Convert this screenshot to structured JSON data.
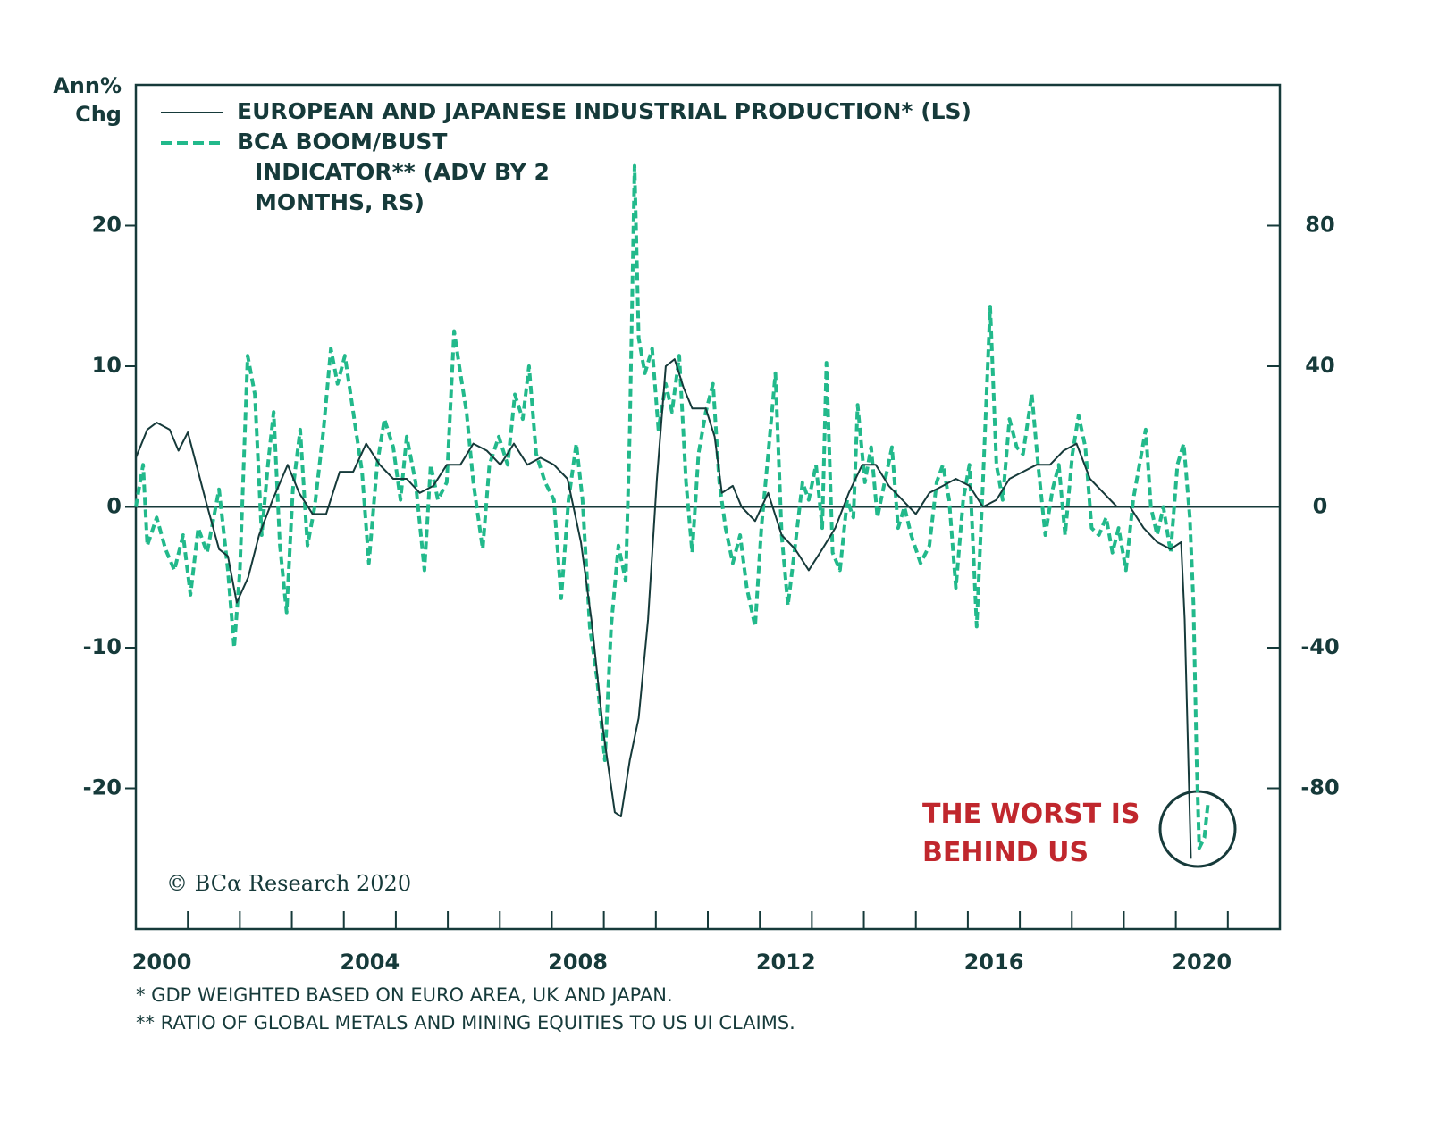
{
  "chart_data": {
    "type": "line",
    "y_axis_label": "Ann% Chg",
    "xlim": [
      2000,
      2022
    ],
    "xticks": [
      2000,
      2004,
      2008,
      2012,
      2016,
      2020
    ],
    "xtick_marks": [
      2001,
      2002,
      2003,
      2004,
      2005,
      2006,
      2007,
      2008,
      2009,
      2010,
      2011,
      2012,
      2013,
      2014,
      2015,
      2016,
      2017,
      2018,
      2019,
      2020,
      2021
    ],
    "ylim": [
      -30,
      30
    ],
    "yticks": [
      -20,
      -10,
      0,
      10,
      20
    ],
    "y2lim": [
      -120,
      120
    ],
    "y2ticks": [
      -80,
      -40,
      0,
      40,
      80
    ],
    "series": [
      {
        "name": "EUROPEAN AND JAPANESE INDUSTRIAL PRODUCTION* (LS)",
        "color": "#163a3a",
        "style": "solid",
        "x": [
          2000,
          2000.22,
          2000.4,
          2000.65,
          2000.82,
          2001,
          2001.34,
          2001.6,
          2001.77,
          2001.94,
          2002.16,
          2002.37,
          2002.63,
          2002.92,
          2003.14,
          2003.4,
          2003.66,
          2003.92,
          2004.18,
          2004.43,
          2004.69,
          2004.95,
          2005.21,
          2005.46,
          2005.72,
          2005.98,
          2006.24,
          2006.49,
          2006.75,
          2007.01,
          2007.27,
          2007.53,
          2007.78,
          2008.04,
          2008.3,
          2008.56,
          2008.76,
          2008.99,
          2009.21,
          2009.33,
          2009.5,
          2009.67,
          2009.85,
          2010.02,
          2010.19,
          2010.36,
          2010.53,
          2010.7,
          2010.96,
          2011.13,
          2011.27,
          2011.48,
          2011.65,
          2011.91,
          2012.16,
          2012.42,
          2012.68,
          2012.94,
          2013.2,
          2013.45,
          2013.71,
          2013.97,
          2014.23,
          2014.48,
          2014.74,
          2015,
          2015.26,
          2015.52,
          2015.77,
          2016.03,
          2016.29,
          2016.55,
          2016.8,
          2017.06,
          2017.32,
          2017.58,
          2017.84,
          2018.09,
          2018.35,
          2018.61,
          2018.87,
          2019.12,
          2019.38,
          2019.64,
          2019.9,
          2020.1,
          2020.17,
          2020.29
        ],
        "values": [
          3.5,
          5.5,
          6,
          5.5,
          4,
          5.3,
          0.5,
          -3,
          -3.5,
          -6.8,
          -5,
          -2,
          0.5,
          3,
          1,
          -0.5,
          -0.5,
          2.5,
          2.5,
          4.5,
          3,
          2,
          2,
          1,
          1.5,
          3,
          3,
          4.5,
          4,
          3,
          4.5,
          3,
          3.5,
          3,
          2,
          -2.5,
          -8,
          -16,
          -21.7,
          -22,
          -18,
          -15,
          -8,
          2,
          10,
          10.5,
          8.5,
          7,
          7,
          5,
          1,
          1.5,
          0,
          -1,
          1,
          -2,
          -3,
          -4.5,
          -3,
          -1.5,
          1,
          3,
          3,
          1.5,
          0.5,
          -0.5,
          1,
          1.5,
          2,
          1.5,
          0,
          0.5,
          2,
          2.5,
          3,
          3,
          4,
          4.5,
          2,
          1,
          0,
          0,
          -1.5,
          -2.5,
          -3,
          -2.5,
          -8,
          -25
        ]
      },
      {
        "name": "BCA BOOM/BUST INDICATOR** (ADV BY 2 MONTHS, RS)",
        "color": "#22b98b",
        "style": "dashed",
        "axis": "y2",
        "x": [
          2000,
          2000.14,
          2000.22,
          2000.4,
          2000.57,
          2000.74,
          2000.91,
          2001.05,
          2001.2,
          2001.37,
          2001.6,
          2001.77,
          2001.89,
          2002,
          2002.15,
          2002.29,
          2002.42,
          2002.54,
          2002.65,
          2002.77,
          2002.9,
          2003.02,
          2003.16,
          2003.3,
          2003.44,
          2003.61,
          2003.75,
          2003.88,
          2004.02,
          2004.18,
          2004.35,
          2004.48,
          2004.64,
          2004.78,
          2004.95,
          2005.09,
          2005.21,
          2005.38,
          2005.55,
          2005.67,
          2005.81,
          2005.98,
          2006.12,
          2006.24,
          2006.36,
          2006.49,
          2006.67,
          2006.8,
          2006.98,
          2007.15,
          2007.29,
          2007.44,
          2007.56,
          2007.7,
          2007.87,
          2008.04,
          2008.18,
          2008.32,
          2008.47,
          2008.59,
          2008.73,
          2008.87,
          2009.02,
          2009.14,
          2009.28,
          2009.42,
          2009.5,
          2009.59,
          2009.67,
          2009.79,
          2009.93,
          2010.05,
          2010.19,
          2010.31,
          2010.45,
          2010.58,
          2010.7,
          2010.82,
          2010.96,
          2011.1,
          2011.22,
          2011.34,
          2011.48,
          2011.62,
          2011.75,
          2011.91,
          2012.03,
          2012.16,
          2012.3,
          2012.42,
          2012.54,
          2012.68,
          2012.82,
          2012.94,
          2013.08,
          2013.2,
          2013.28,
          2013.4,
          2013.54,
          2013.68,
          2013.8,
          2013.88,
          2014.02,
          2014.14,
          2014.26,
          2014.4,
          2014.54,
          2014.66,
          2014.78,
          2014.91,
          2015.09,
          2015.26,
          2015.4,
          2015.52,
          2015.64,
          2015.77,
          2015.91,
          2016.03,
          2016.17,
          2016.29,
          2016.43,
          2016.55,
          2016.67,
          2016.8,
          2016.94,
          2017.06,
          2017.23,
          2017.35,
          2017.49,
          2017.63,
          2017.75,
          2017.87,
          2018.01,
          2018.13,
          2018.26,
          2018.38,
          2018.52,
          2018.66,
          2018.78,
          2018.9,
          2019.04,
          2019.18,
          2019.3,
          2019.42,
          2019.52,
          2019.64,
          2019.76,
          2019.9,
          2020.03,
          2020.15,
          2020.27,
          2020.34,
          2020.4,
          2020.45,
          2020.55,
          2020.62
        ],
        "values": [
          0,
          12,
          -11,
          -3,
          -12,
          -18,
          -8,
          -25,
          -6,
          -13,
          5,
          -18,
          -40,
          -18,
          43,
          32,
          -8,
          12,
          27,
          -11,
          -30,
          5,
          22,
          -11,
          0,
          22,
          45,
          35,
          43,
          27,
          10,
          -16,
          12,
          25,
          17,
          2,
          20,
          7,
          -18,
          12,
          2,
          7,
          50,
          38,
          27,
          7,
          -12,
          12,
          20,
          12,
          32,
          25,
          40,
          15,
          7,
          2,
          -26,
          2,
          18,
          2,
          -34,
          -49,
          -72,
          -34,
          -11,
          -21,
          22,
          97,
          48,
          38,
          45,
          22,
          35,
          27,
          43,
          7,
          -13,
          15,
          27,
          35,
          7,
          -6,
          -16,
          -8,
          -23,
          -34,
          -6,
          15,
          38,
          -8,
          -28,
          -11,
          7,
          2,
          12,
          -6,
          41,
          -13,
          -18,
          2,
          -3,
          29,
          7,
          17,
          -3,
          7,
          17,
          -6,
          0,
          -8,
          -16,
          -11,
          7,
          12,
          2,
          -23,
          2,
          12,
          -34,
          7,
          57,
          12,
          2,
          25,
          17,
          15,
          32,
          12,
          -8,
          5,
          12,
          -8,
          15,
          26,
          17,
          -6,
          -8,
          -3,
          -13,
          -6,
          -18,
          2,
          12,
          22,
          0,
          -8,
          0,
          -13,
          12,
          18,
          -3,
          -28,
          -72,
          -97,
          -94,
          -84
        ]
      }
    ],
    "annotation": "THE WORST IS BEHIND US",
    "copyright": "© BCα Research 2020",
    "footnotes": [
      "* GDP WEIGHTED BASED ON EURO AREA, UK AND JAPAN.",
      "** RATIO OF GLOBAL METALS AND MINING EQUITIES TO US UI CLAIMS."
    ]
  }
}
